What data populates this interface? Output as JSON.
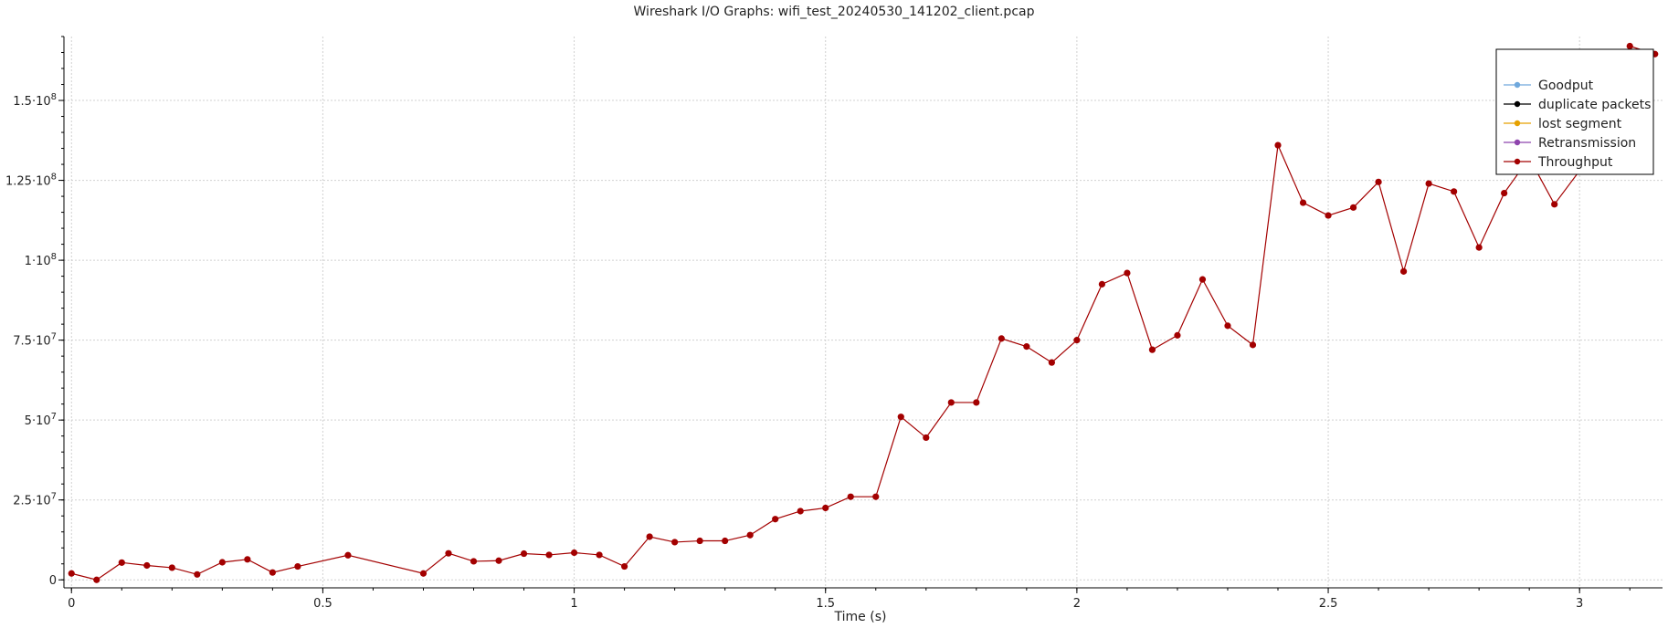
{
  "chart_data": {
    "type": "line",
    "title": "Wireshark I/O Graphs: wifi_test_20240530_141202_client.pcap",
    "xlabel": "Time (s)",
    "ylabel": "",
    "xlim": [
      -0.015,
      3.165
    ],
    "ylim": [
      -2500000,
      170000000
    ],
    "x_ticks": [
      0,
      0.5,
      1,
      1.5,
      2,
      2.5,
      3
    ],
    "x_tick_labels": [
      "0",
      "0.5",
      "1",
      "1.5",
      "2",
      "2.5",
      "3"
    ],
    "y_ticks": [
      0,
      25000000,
      50000000,
      75000000,
      100000000,
      125000000,
      150000000
    ],
    "y_tick_labels": [
      "0",
      "2.5·10",
      "5·10",
      "7.5·10",
      "1·10",
      "1.25·10",
      "1.5·10"
    ],
    "y_tick_exponents": [
      "",
      "7",
      "7",
      "7",
      "8",
      "8",
      "8"
    ],
    "grid": true,
    "legend_position": "top-right",
    "legend": [
      {
        "name": "Goodput",
        "color": "#6fa8dc"
      },
      {
        "name": "duplicate packets",
        "color": "#000000"
      },
      {
        "name": "lost segment",
        "color": "#e6a100"
      },
      {
        "name": "Retransmission",
        "color": "#8e44ad"
      },
      {
        "name": "Throughput",
        "color": "#a30000"
      }
    ],
    "series": [
      {
        "name": "Throughput",
        "color": "#a30000",
        "x": [
          0,
          0.05,
          0.1,
          0.15,
          0.2,
          0.25,
          0.3,
          0.35,
          0.4,
          0.45,
          0.55,
          0.7,
          0.75,
          0.8,
          0.85,
          0.9,
          0.95,
          1.0,
          1.05,
          1.1,
          1.15,
          1.2,
          1.25,
          1.3,
          1.35,
          1.4,
          1.45,
          1.5,
          1.55,
          1.6,
          1.65,
          1.7,
          1.75,
          1.8,
          1.85,
          1.9,
          1.95,
          2.0,
          2.05,
          2.1,
          2.15,
          2.2,
          2.25,
          2.3,
          2.35,
          2.4,
          2.45,
          2.5,
          2.55,
          2.6,
          2.65,
          2.7,
          2.75,
          2.8,
          2.85,
          2.9,
          2.95,
          3.0,
          3.05,
          3.1,
          3.15
        ],
        "y": [
          2000000,
          0,
          5400000,
          4500000,
          3800000,
          1700000,
          5500000,
          6400000,
          2300000,
          4200000,
          7700000,
          2000000,
          8300000,
          5800000,
          6000000,
          8200000,
          7800000,
          8500000,
          7800000,
          4200000,
          13500000,
          11800000,
          12200000,
          12200000,
          14000000,
          19000000,
          21500000,
          22500000,
          26000000,
          26000000,
          51000000,
          44500000,
          55500000,
          55500000,
          75500000,
          73000000,
          68000000,
          75000000,
          92500000,
          96000000,
          72000000,
          76500000,
          94000000,
          79500000,
          73500000,
          136000000,
          118000000,
          114000000,
          116500000,
          124500000,
          96500000,
          124000000,
          121500000,
          104000000,
          121000000,
          132000000,
          117500000,
          128000000,
          136000000,
          167000000,
          164500000
        ]
      }
    ]
  }
}
